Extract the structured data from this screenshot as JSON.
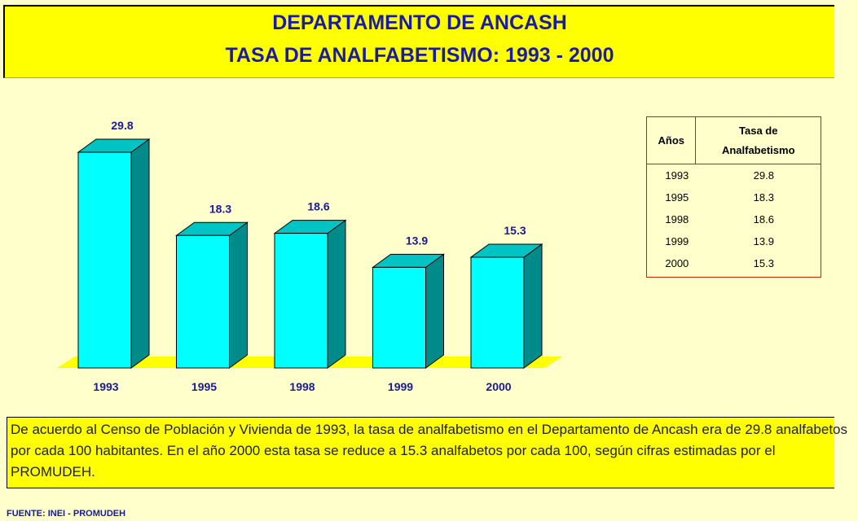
{
  "chart_data": {
    "type": "bar",
    "title": [
      "DEPARTAMENTO DE ANCASH",
      "TASA DE ANALFABETISMO: 1993 - 2000"
    ],
    "categories": [
      "1993",
      "1995",
      "1998",
      "1999",
      "2000"
    ],
    "values": [
      29.8,
      18.3,
      18.6,
      13.9,
      15.3
    ],
    "color": "#00ffff"
  },
  "table": {
    "headers": [
      "Años",
      "Tasa de Analfabetismo"
    ],
    "rows": [
      [
        "1993",
        "29.8"
      ],
      [
        "1995",
        "18.3"
      ],
      [
        "1998",
        "18.6"
      ],
      [
        "1999",
        "13.9"
      ],
      [
        "2000",
        "15.3"
      ]
    ]
  },
  "text": "De acuerdo al Censo de Población y Vivienda de 1993, la tasa de analfabetismo en el Departamento de Ancash era de 29.8 analfabetos por cada 100 habitantes. En el año 2000 esta tasa se reduce a 15.3 analfabetos por cada 100, según cifras estimadas por el PROMUDEH.",
  "source": "FUENTE: INEI - PROMUDEH"
}
